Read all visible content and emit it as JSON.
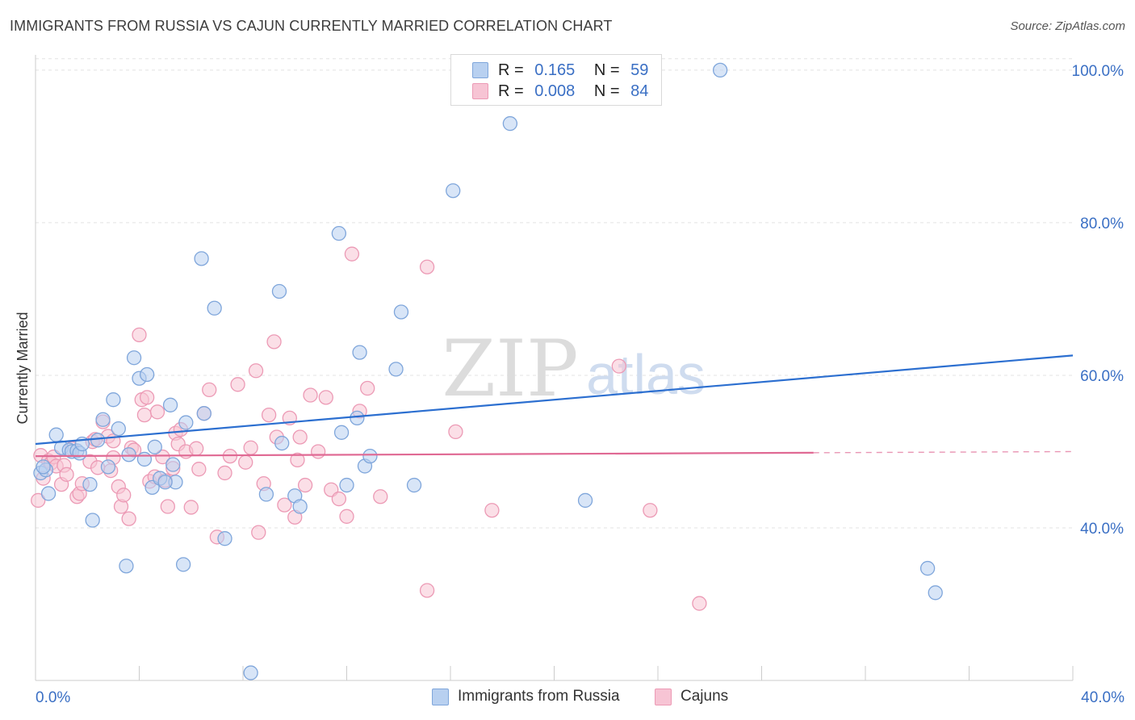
{
  "title": "IMMIGRANTS FROM RUSSIA VS CAJUN CURRENTLY MARRIED CORRELATION CHART",
  "source": "Source: ZipAtlas.com",
  "watermark": {
    "zip": "ZIP",
    "atlas": "atlas"
  },
  "legend": {
    "r_label": "R =",
    "n_label": "N =",
    "rows": [
      {
        "r": "0.165",
        "n": "59"
      },
      {
        "r": "0.008",
        "n": "84"
      }
    ]
  },
  "colors": {
    "blue_fill": "#b8d0f0",
    "blue_stroke": "#7fa6db",
    "blue_line": "#2c6fd0",
    "pink_fill": "#f7c4d4",
    "pink_stroke": "#ec9ab5",
    "pink_line": "#e06a94",
    "axis_text": "#3a6fc4",
    "grid": "#e3e3e3"
  },
  "chart_data": {
    "type": "scatter",
    "title": "IMMIGRANTS FROM RUSSIA VS CAJUN CURRENTLY MARRIED CORRELATION CHART",
    "xlabel": "",
    "ylabel": "Currently Married",
    "xlim": [
      0,
      40
    ],
    "ylim": [
      20,
      102
    ],
    "x_ticks": [
      "0.0%",
      "40.0%"
    ],
    "y_ticks": [
      {
        "value": 40,
        "label": "40.0%"
      },
      {
        "value": 60,
        "label": "60.0%"
      },
      {
        "value": 80,
        "label": "80.0%"
      },
      {
        "value": 100,
        "label": "100.0%"
      }
    ],
    "series": [
      {
        "name": "Immigrants from Russia",
        "color": "blue",
        "points": [
          [
            0.2,
            47.2
          ],
          [
            0.4,
            47.6
          ],
          [
            0.5,
            44.5
          ],
          [
            0.8,
            52.2
          ],
          [
            1.0,
            50.5
          ],
          [
            1.3,
            50.2
          ],
          [
            1.4,
            50.0
          ],
          [
            1.6,
            50.1
          ],
          [
            1.7,
            49.8
          ],
          [
            1.8,
            51.0
          ],
          [
            2.1,
            45.7
          ],
          [
            2.2,
            41.0
          ],
          [
            2.6,
            54.2
          ],
          [
            2.8,
            48.0
          ],
          [
            3.0,
            56.8
          ],
          [
            3.2,
            53.0
          ],
          [
            3.5,
            35.0
          ],
          [
            3.6,
            49.6
          ],
          [
            3.8,
            62.3
          ],
          [
            4.0,
            59.6
          ],
          [
            4.2,
            49.0
          ],
          [
            4.3,
            60.1
          ],
          [
            4.5,
            45.3
          ],
          [
            4.6,
            50.6
          ],
          [
            4.8,
            46.5
          ],
          [
            5.2,
            56.1
          ],
          [
            5.3,
            48.3
          ],
          [
            5.4,
            46.0
          ],
          [
            5.7,
            35.2
          ],
          [
            5.8,
            53.8
          ],
          [
            6.4,
            75.3
          ],
          [
            6.5,
            55.0
          ],
          [
            6.9,
            68.8
          ],
          [
            7.3,
            38.6
          ],
          [
            8.3,
            21.0
          ],
          [
            8.9,
            44.4
          ],
          [
            9.4,
            71.0
          ],
          [
            9.5,
            51.1
          ],
          [
            10.0,
            44.2
          ],
          [
            10.2,
            42.8
          ],
          [
            11.7,
            78.6
          ],
          [
            11.8,
            52.5
          ],
          [
            12.0,
            45.6
          ],
          [
            12.4,
            54.4
          ],
          [
            12.5,
            63.0
          ],
          [
            12.7,
            48.1
          ],
          [
            12.9,
            49.4
          ],
          [
            13.9,
            60.8
          ],
          [
            14.1,
            68.3
          ],
          [
            14.6,
            45.6
          ],
          [
            16.1,
            84.2
          ],
          [
            18.3,
            93.0
          ],
          [
            21.2,
            43.6
          ],
          [
            26.4,
            100.0
          ],
          [
            34.4,
            34.7
          ],
          [
            34.7,
            31.5
          ],
          [
            0.3,
            48.0
          ],
          [
            2.4,
            51.5
          ],
          [
            5.0,
            46.0
          ]
        ]
      },
      {
        "name": "Cajuns",
        "color": "pink",
        "points": [
          [
            0.1,
            43.6
          ],
          [
            0.2,
            49.5
          ],
          [
            0.3,
            46.5
          ],
          [
            0.5,
            48.8
          ],
          [
            0.6,
            48.5
          ],
          [
            0.7,
            49.3
          ],
          [
            0.8,
            48.1
          ],
          [
            1.0,
            45.7
          ],
          [
            1.1,
            48.2
          ],
          [
            1.4,
            50.4
          ],
          [
            1.6,
            44.1
          ],
          [
            1.7,
            44.5
          ],
          [
            1.8,
            45.8
          ],
          [
            2.1,
            48.7
          ],
          [
            2.2,
            51.3
          ],
          [
            2.3,
            51.6
          ],
          [
            2.4,
            47.9
          ],
          [
            2.6,
            53.9
          ],
          [
            2.8,
            52.0
          ],
          [
            2.9,
            47.5
          ],
          [
            3.0,
            51.4
          ],
          [
            3.2,
            45.4
          ],
          [
            3.3,
            42.8
          ],
          [
            3.4,
            44.3
          ],
          [
            3.6,
            41.2
          ],
          [
            3.7,
            50.5
          ],
          [
            3.8,
            50.2
          ],
          [
            4.0,
            65.3
          ],
          [
            4.1,
            56.8
          ],
          [
            4.2,
            54.8
          ],
          [
            4.3,
            57.1
          ],
          [
            4.4,
            46.1
          ],
          [
            4.6,
            46.7
          ],
          [
            4.7,
            55.2
          ],
          [
            4.9,
            49.3
          ],
          [
            5.1,
            42.8
          ],
          [
            5.3,
            47.8
          ],
          [
            5.4,
            52.4
          ],
          [
            5.5,
            51.0
          ],
          [
            5.6,
            52.9
          ],
          [
            5.8,
            50.0
          ],
          [
            6.0,
            42.7
          ],
          [
            6.2,
            50.4
          ],
          [
            6.5,
            55.0
          ],
          [
            6.7,
            58.1
          ],
          [
            7.0,
            38.8
          ],
          [
            7.3,
            47.2
          ],
          [
            7.5,
            49.4
          ],
          [
            7.8,
            58.8
          ],
          [
            8.1,
            48.6
          ],
          [
            8.3,
            50.5
          ],
          [
            8.5,
            60.6
          ],
          [
            8.6,
            39.4
          ],
          [
            8.8,
            45.8
          ],
          [
            9.0,
            54.8
          ],
          [
            9.2,
            64.4
          ],
          [
            9.3,
            51.9
          ],
          [
            9.6,
            43.0
          ],
          [
            9.8,
            54.4
          ],
          [
            10.0,
            41.4
          ],
          [
            10.2,
            51.9
          ],
          [
            10.4,
            45.6
          ],
          [
            10.6,
            57.4
          ],
          [
            10.9,
            50.0
          ],
          [
            11.2,
            57.1
          ],
          [
            11.4,
            45.0
          ],
          [
            11.7,
            43.8
          ],
          [
            12.0,
            41.5
          ],
          [
            12.2,
            75.9
          ],
          [
            12.5,
            55.3
          ],
          [
            12.8,
            58.3
          ],
          [
            13.3,
            44.1
          ],
          [
            15.1,
            74.2
          ],
          [
            15.1,
            31.8
          ],
          [
            16.2,
            52.6
          ],
          [
            17.6,
            42.3
          ],
          [
            22.5,
            61.2
          ],
          [
            23.7,
            42.3
          ],
          [
            25.6,
            30.1
          ],
          [
            5.0,
            46.2
          ],
          [
            6.3,
            47.7
          ],
          [
            10.1,
            48.9
          ],
          [
            3.0,
            49.2
          ],
          [
            1.2,
            47.0
          ]
        ]
      }
    ],
    "trend_lines": [
      {
        "series": "Immigrants from Russia",
        "x": [
          0,
          40
        ],
        "y": [
          51.0,
          62.6
        ]
      },
      {
        "series": "Cajuns",
        "x": [
          0,
          40
        ],
        "y": [
          49.4,
          50.0
        ],
        "solid_until_x": 30.0
      }
    ]
  },
  "bottom_legend": [
    "Immigrants from Russia",
    "Cajuns"
  ]
}
